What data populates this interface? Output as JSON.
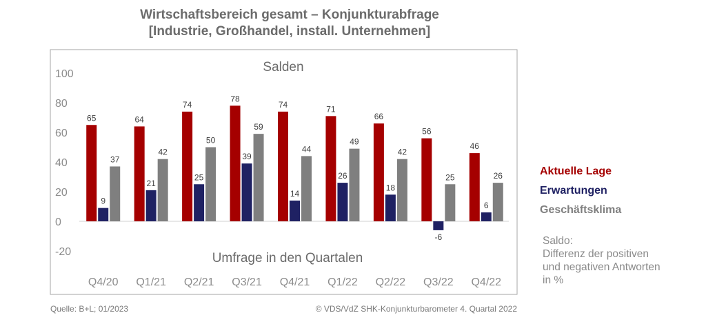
{
  "title_line1": "Wirtschaftsbereich gesamt – Konjunkturabfrage",
  "title_line2": "[Industrie, Großhandel, install. Unternehmen]",
  "chart_data": {
    "type": "bar",
    "title": "Wirtschaftsbereich gesamt – Konjunkturabfrage [Industrie, Großhandel, install. Unternehmen]",
    "subtitle": "Salden",
    "xlabel": "Umfrage in den Quartalen",
    "ylabel": "",
    "ylim": [
      -20,
      100
    ],
    "yticks": [
      100,
      80,
      60,
      40,
      20,
      0,
      -20
    ],
    "categories": [
      "Q4/20",
      "Q1/21",
      "Q2/21",
      "Q3/21",
      "Q4/21",
      "Q1/22",
      "Q2/22",
      "Q3/22",
      "Q4/22"
    ],
    "series": [
      {
        "name": "Aktuelle Lage",
        "color": "#a50000",
        "values": [
          65,
          64,
          74,
          78,
          74,
          71,
          66,
          56,
          46
        ]
      },
      {
        "name": "Erwartungen",
        "color": "#1f2163",
        "values": [
          9,
          21,
          25,
          39,
          14,
          26,
          18,
          -6,
          6
        ]
      },
      {
        "name": "Geschäftsklima",
        "color": "#7f7f7f",
        "values": [
          37,
          42,
          50,
          59,
          44,
          49,
          42,
          25,
          26
        ]
      }
    ],
    "legend_position": "right"
  },
  "note_lines": [
    "Saldo:",
    "Differenz der positiven",
    "und negativen Antworten",
    "in %"
  ],
  "source": "Quelle: B+L; 01/2023",
  "copyright": "© VDS/VdZ SHK-Konjunkturbarometer 4. Quartal 2022"
}
